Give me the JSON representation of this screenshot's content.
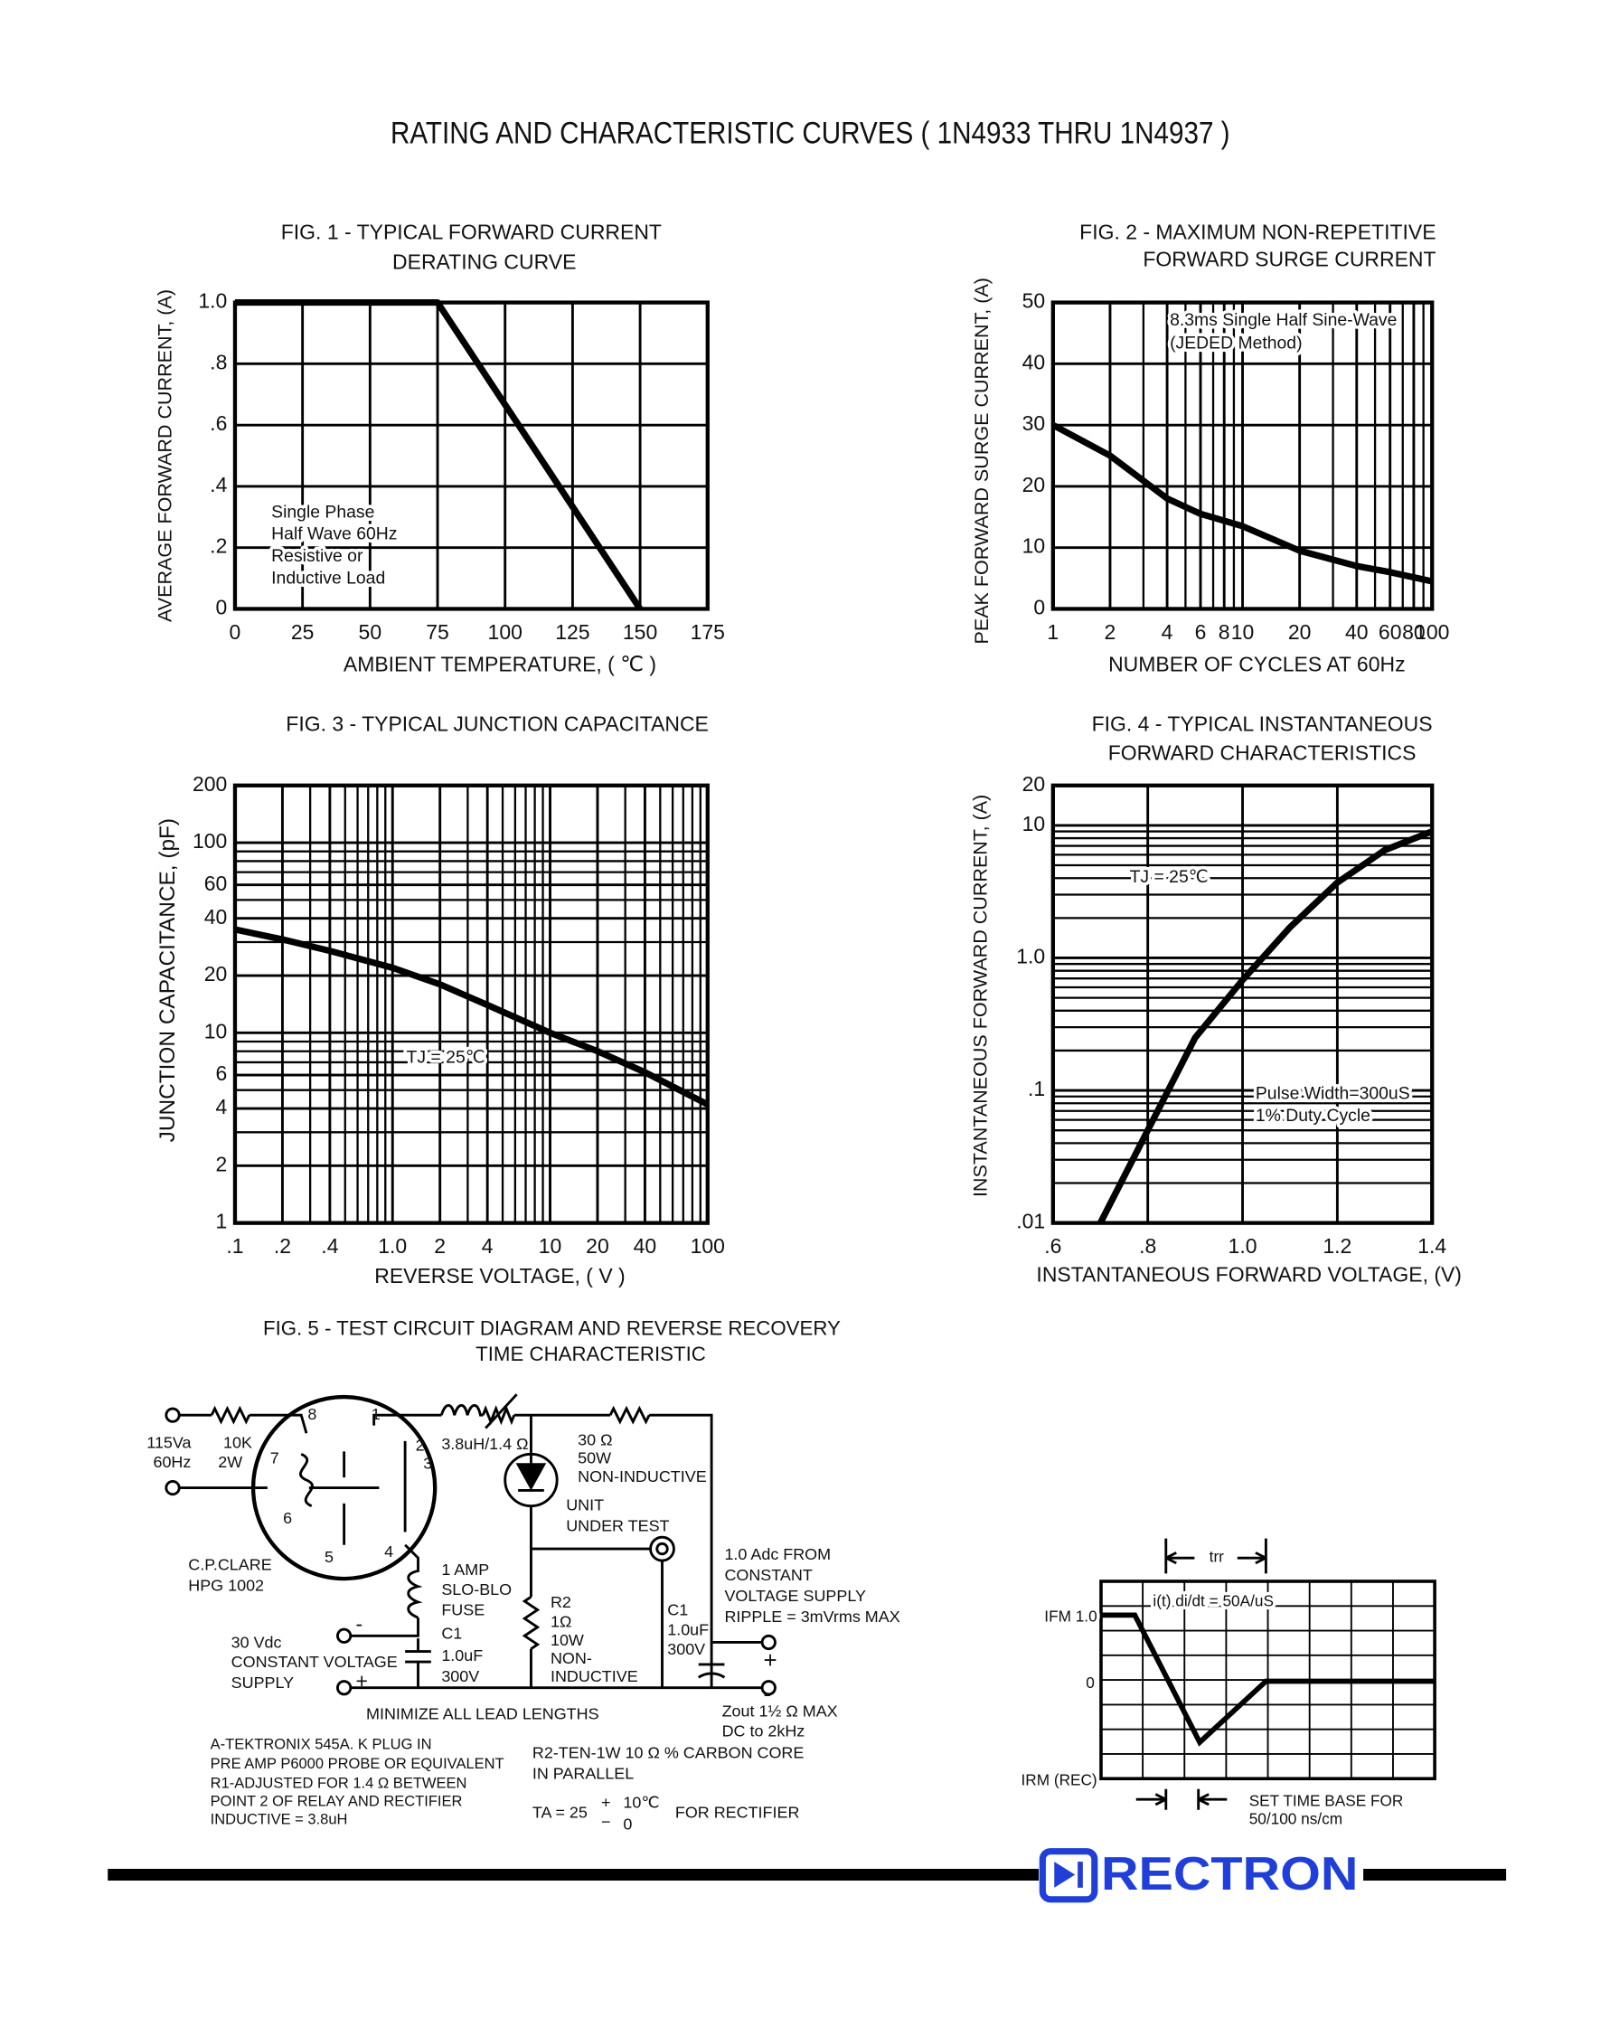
{
  "title": "RATING AND CHARACTERISTIC CURVES ( 1N4933 THRU 1N4937 )",
  "chart_data": [
    {
      "type": "line",
      "title": [
        "FIG. 1 - TYPICAL FORWARD CURRENT",
        "DERATING CURVE"
      ],
      "xlabel": "AMBIENT TEMPERATURE, ( ℃ )",
      "ylabel": "AVERAGE FORWARD CURRENT, (A)",
      "xscale": "linear",
      "yscale": "linear",
      "xlim": [
        0,
        175
      ],
      "ylim": [
        0,
        1.0
      ],
      "xticks": [
        0,
        25,
        50,
        75,
        100,
        125,
        150,
        175
      ],
      "yticks": [
        0,
        {
          "value": 0.2,
          "label": ".2"
        },
        {
          "value": 0.4,
          "label": ".4"
        },
        {
          "value": 0.6,
          "label": ".6"
        },
        {
          "value": 0.8,
          "label": ".8"
        },
        {
          "value": 1.0,
          "label": "1.0"
        }
      ],
      "grid": true,
      "color": "#000000",
      "x": [
        0,
        75,
        150
      ],
      "values": [
        1.0,
        1.0,
        0
      ],
      "annotations": [
        "Single Phase",
        "Half Wave 60Hz",
        "Resistive or",
        "Inductive Load"
      ]
    },
    {
      "type": "line",
      "title": [
        "FIG. 2 - MAXIMUM NON-REPETITIVE",
        "FORWARD SURGE CURRENT"
      ],
      "xlabel": "NUMBER OF CYCLES AT 60Hz",
      "ylabel": "PEAK FORWARD SURGE CURRENT, (A)",
      "xscale": "log",
      "yscale": "linear",
      "xlim": [
        1,
        100
      ],
      "ylim": [
        0,
        50
      ],
      "xticks": [
        1,
        2,
        4,
        6,
        8,
        10,
        20,
        40,
        60,
        80,
        100
      ],
      "yticks": [
        0,
        10,
        20,
        30,
        40,
        50
      ],
      "grid": true,
      "color": "#000000",
      "x": [
        1,
        2,
        4,
        6,
        10,
        20,
        40,
        60,
        100
      ],
      "values": [
        30,
        25,
        18,
        15.5,
        13.5,
        9.5,
        7,
        6,
        4.5
      ],
      "annotations": [
        "8.3ms Single Half Sine-Wave",
        "(JEDED Method)"
      ]
    },
    {
      "type": "line",
      "title": [
        "FIG. 3 - TYPICAL JUNCTION CAPACITANCE"
      ],
      "xlabel": "REVERSE VOLTAGE, ( V )",
      "ylabel": "JUNCTION CAPACITANCE, (pF)",
      "xscale": "log",
      "yscale": "log",
      "xlim": [
        0.1,
        100
      ],
      "ylim": [
        1,
        200
      ],
      "xticks": [
        {
          "value": 0.1,
          "label": ".1"
        },
        {
          "value": 0.2,
          "label": ".2"
        },
        {
          "value": 0.4,
          "label": ".4"
        },
        {
          "value": 1.0,
          "label": "1.0"
        },
        2,
        4,
        10,
        20,
        40,
        100
      ],
      "yticks": [
        1,
        2,
        4,
        6,
        10,
        20,
        40,
        60,
        100,
        200
      ],
      "grid": true,
      "color": "#000000",
      "x": [
        0.1,
        0.2,
        0.4,
        1,
        2,
        4,
        10,
        20,
        40,
        100
      ],
      "values": [
        35,
        31,
        27,
        22,
        18,
        14,
        10,
        8,
        6.2,
        4.2
      ],
      "annotations": [
        "TJ = 25℃"
      ]
    },
    {
      "type": "line",
      "title": [
        "FIG. 4 - TYPICAL INSTANTANEOUS",
        "FORWARD CHARACTERISTICS"
      ],
      "xlabel": "INSTANTANEOUS FORWARD VOLTAGE, (V)",
      "ylabel": "INSTANTANEOUS FORWARD CURRENT, (A)",
      "xscale": "linear",
      "yscale": "log",
      "xlim": [
        0.6,
        1.4
      ],
      "ylim": [
        0.01,
        20
      ],
      "xticks": [
        {
          "value": 0.6,
          "label": ".6"
        },
        {
          "value": 0.8,
          "label": ".8"
        },
        {
          "value": 1.0,
          "label": "1.0"
        },
        {
          "value": 1.2,
          "label": "1.2"
        },
        {
          "value": 1.4,
          "label": "1.4"
        }
      ],
      "yticks": [
        {
          "value": 0.01,
          "label": ".01"
        },
        {
          "value": 0.1,
          "label": ".1"
        },
        {
          "value": 1.0,
          "label": "1.0"
        },
        10,
        20
      ],
      "grid": true,
      "color": "#000000",
      "x": [
        0.7,
        0.8,
        0.9,
        1.0,
        1.1,
        1.2,
        1.3,
        1.4
      ],
      "values": [
        0.01,
        0.05,
        0.25,
        0.68,
        1.7,
        3.7,
        6.5,
        9
      ],
      "annotations": [
        "TJ = 25℃",
        "Pulse Width=300uS",
        "1% Duty Cycle"
      ]
    }
  ],
  "figure5": {
    "title": [
      "FIG. 5 - TEST CIRCUIT DIAGRAM  AND REVERSE RECOVERY",
      "TIME CHARACTERISTIC"
    ],
    "labels": [
      "115Va",
      "60Hz",
      "10K",
      "2W",
      "8",
      "1",
      "2",
      "3",
      "7",
      "6",
      "5",
      "4",
      "3.8uH/1.4 Ω",
      "30 Ω",
      "50W",
      "NON-INDUCTIVE",
      "UNIT",
      "UNDER TEST",
      "C.P.CLARE",
      "HPG 1002",
      "1 AMP",
      "SLO-BLO",
      "FUSE",
      "C1",
      "1.0uF",
      "300V",
      "30 Vdc",
      "CONSTANT VOLTAGE",
      "SUPPLY",
      "R2",
      "1Ω",
      "10W",
      "NON-",
      "INDUCTIVE",
      "C1",
      "1.0uF",
      "300V",
      "1.0 Adc FROM",
      "CONSTANT",
      "VOLTAGE SUPPLY",
      "RIPPLE = 3mVrms MAX",
      "MINIMIZE ALL LEAD LENGTHS",
      "Zout 1½ Ω MAX",
      "DC to 2kHz",
      "A-TEKTRONIX 545A. K PLUG IN",
      "PRE AMP P6000 PROBE OR EQUIVALENT",
      "R1-ADJUSTED FOR 1.4 Ω BETWEEN",
      "POINT 2 OF RELAY AND RECTIFIER",
      "INDUCTIVE = 3.8uH",
      "R2-TEN-1W 10 Ω % CARBON CORE",
      "IN PARALLEL",
      "TA = 25",
      "+",
      "10℃",
      "−",
      "0",
      "FOR RECTIFIER",
      "-",
      "+",
      "+",
      "-"
    ]
  },
  "waveform": {
    "labels": [
      "trr",
      "i(t) di/dt = 50A/uS",
      "IFM 1.0",
      "0",
      "IRM (REC)",
      "SET TIME BASE FOR",
      "50/100 ns/cm"
    ]
  },
  "brand": "RECTRON"
}
